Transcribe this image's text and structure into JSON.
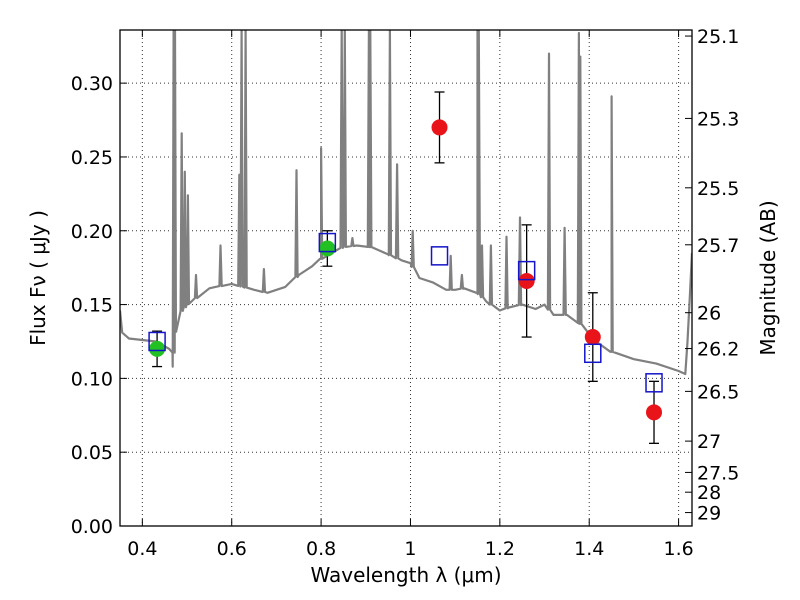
{
  "chart_data": {
    "type": "scatter",
    "title": "",
    "xlabel": "Wavelength  λ (μm)",
    "ylabel": "Flux  Fν  ( μJy )",
    "y2label": "Magnitude (AB)",
    "xlim": [
      0.35,
      1.63
    ],
    "ylim": [
      0.0,
      0.336
    ],
    "grid": true,
    "x_ticks": [
      0.4,
      0.6,
      0.8,
      1.0,
      1.2,
      1.4,
      1.6
    ],
    "x_tick_labels": [
      "0.4",
      "0.6",
      "0.8",
      "1",
      "1.2",
      "1.4",
      "1.6"
    ],
    "y_ticks": [
      0.0,
      0.05,
      0.1,
      0.15,
      0.2,
      0.25,
      0.3
    ],
    "y_tick_labels": [
      "0.00",
      "0.05",
      "0.10",
      "0.15",
      "0.20",
      "0.25",
      "0.30"
    ],
    "y2_ticks": [
      {
        "label": "25.1",
        "flux": 0.3319
      },
      {
        "label": "25.3",
        "flux": 0.2761
      },
      {
        "label": "25.5",
        "flux": 0.2291
      },
      {
        "label": "25.7",
        "flux": 0.1905
      },
      {
        "label": "26",
        "flux": 0.1445
      },
      {
        "label": "26.2",
        "flux": 0.1202
      },
      {
        "label": "26.5",
        "flux": 0.0912
      },
      {
        "label": "27",
        "flux": 0.0575
      },
      {
        "label": "27.5",
        "flux": 0.0363
      },
      {
        "label": "28",
        "flux": 0.0229
      },
      {
        "label": "29",
        "flux": 0.0091
      }
    ],
    "series": [
      {
        "marker": "circle",
        "color": "#e8141a",
        "points": [
          {
            "x": 1.065,
            "y": 0.27,
            "err": 0.024
          },
          {
            "x": 1.26,
            "y": 0.166,
            "err": 0.038
          },
          {
            "x": 1.408,
            "y": 0.128,
            "err": 0.03
          },
          {
            "x": 1.545,
            "y": 0.077,
            "err": 0.021
          }
        ]
      },
      {
        "marker": "circle",
        "color": "#22c022",
        "points": [
          {
            "x": 0.433,
            "y": 0.12,
            "err": 0.012
          },
          {
            "x": 0.814,
            "y": 0.188,
            "err": 0.012
          }
        ]
      },
      {
        "marker": "open-square",
        "color": "#1414c8",
        "points": [
          {
            "x": 0.433,
            "y": 0.125
          },
          {
            "x": 0.814,
            "y": 0.192
          },
          {
            "x": 1.065,
            "y": 0.183
          },
          {
            "x": 1.26,
            "y": 0.173
          },
          {
            "x": 1.408,
            "y": 0.117
          },
          {
            "x": 1.545,
            "y": 0.097
          }
        ]
      }
    ],
    "model_spectrum": {
      "color": "#808080",
      "continuum": [
        [
          0.35,
          0.146
        ],
        [
          0.355,
          0.131
        ],
        [
          0.37,
          0.127
        ],
        [
          0.4,
          0.126
        ],
        [
          0.43,
          0.125
        ],
        [
          0.46,
          0.12
        ],
        [
          0.468,
          0.108
        ],
        [
          0.475,
          0.141
        ],
        [
          0.5,
          0.15
        ],
        [
          0.55,
          0.161
        ],
        [
          0.6,
          0.164
        ],
        [
          0.65,
          0.16
        ],
        [
          0.68,
          0.158
        ],
        [
          0.72,
          0.162
        ],
        [
          0.75,
          0.17
        ],
        [
          0.78,
          0.176
        ],
        [
          0.8,
          0.181
        ],
        [
          0.83,
          0.186
        ],
        [
          0.85,
          0.189
        ],
        [
          0.88,
          0.19
        ],
        [
          0.91,
          0.189
        ],
        [
          0.95,
          0.184
        ],
        [
          0.98,
          0.18
        ],
        [
          1.0,
          0.178
        ],
        [
          1.02,
          0.168
        ],
        [
          1.05,
          0.165
        ],
        [
          1.08,
          0.16
        ],
        [
          1.1,
          0.16
        ],
        [
          1.12,
          0.161
        ],
        [
          1.15,
          0.158
        ],
        [
          1.17,
          0.152
        ],
        [
          1.2,
          0.146
        ],
        [
          1.22,
          0.148
        ],
        [
          1.25,
          0.15
        ],
        [
          1.28,
          0.147
        ],
        [
          1.3,
          0.15
        ],
        [
          1.32,
          0.143
        ],
        [
          1.35,
          0.143
        ],
        [
          1.38,
          0.137
        ],
        [
          1.4,
          0.13
        ],
        [
          1.42,
          0.124
        ],
        [
          1.45,
          0.118
        ],
        [
          1.5,
          0.113
        ],
        [
          1.55,
          0.11
        ],
        [
          1.6,
          0.105
        ],
        [
          1.615,
          0.103
        ],
        [
          1.62,
          0.125
        ],
        [
          1.625,
          0.155
        ],
        [
          1.63,
          0.185
        ]
      ],
      "lines": [
        [
          0.47,
          0.336
        ],
        [
          0.473,
          0.336
        ],
        [
          0.488,
          0.266
        ],
        [
          0.495,
          0.24
        ],
        [
          0.502,
          0.224
        ],
        [
          0.52,
          0.17
        ],
        [
          0.575,
          0.19
        ],
        [
          0.617,
          0.238
        ],
        [
          0.622,
          0.336
        ],
        [
          0.631,
          0.336
        ],
        [
          0.672,
          0.174
        ],
        [
          0.745,
          0.241
        ],
        [
          0.8,
          0.256
        ],
        [
          0.846,
          0.336
        ],
        [
          0.853,
          0.336
        ],
        [
          0.87,
          0.195
        ],
        [
          0.907,
          0.336
        ],
        [
          0.91,
          0.336
        ],
        [
          0.954,
          0.336
        ],
        [
          0.97,
          0.245
        ],
        [
          1.005,
          0.2
        ],
        [
          1.09,
          0.183
        ],
        [
          1.115,
          0.17
        ],
        [
          1.15,
          0.336
        ],
        [
          1.153,
          0.336
        ],
        [
          1.16,
          0.19
        ],
        [
          1.18,
          0.19
        ],
        [
          1.215,
          0.196
        ],
        [
          1.245,
          0.209
        ],
        [
          1.31,
          0.32
        ],
        [
          1.345,
          0.202
        ],
        [
          1.377,
          0.334
        ],
        [
          1.38,
          0.318
        ],
        [
          1.45,
          0.291
        ]
      ]
    }
  }
}
